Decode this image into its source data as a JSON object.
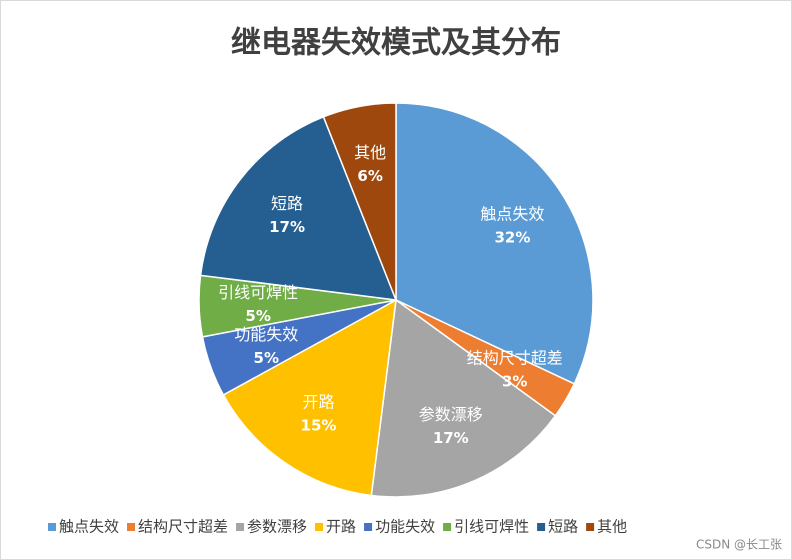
{
  "chart_data": {
    "type": "pie",
    "title": "继电器失效模式及其分布",
    "categories": [
      "触点失效",
      "结构尺寸超差",
      "参数漂移",
      "开路",
      "功能失效",
      "引线可焊性",
      "短路",
      "其他"
    ],
    "values": [
      32,
      3,
      17,
      15,
      5,
      5,
      17,
      6
    ],
    "value_labels": [
      "32%",
      "3%",
      "17%",
      "15%",
      "5%",
      "5%",
      "17%",
      "6%"
    ],
    "colors": [
      "#5b9bd5",
      "#ed7d31",
      "#a5a5a5",
      "#ffc000",
      "#4472c4",
      "#70ad47",
      "#255e91",
      "#9e480e"
    ],
    "legend": "bottom"
  },
  "watermark": "CSDN @长工张"
}
